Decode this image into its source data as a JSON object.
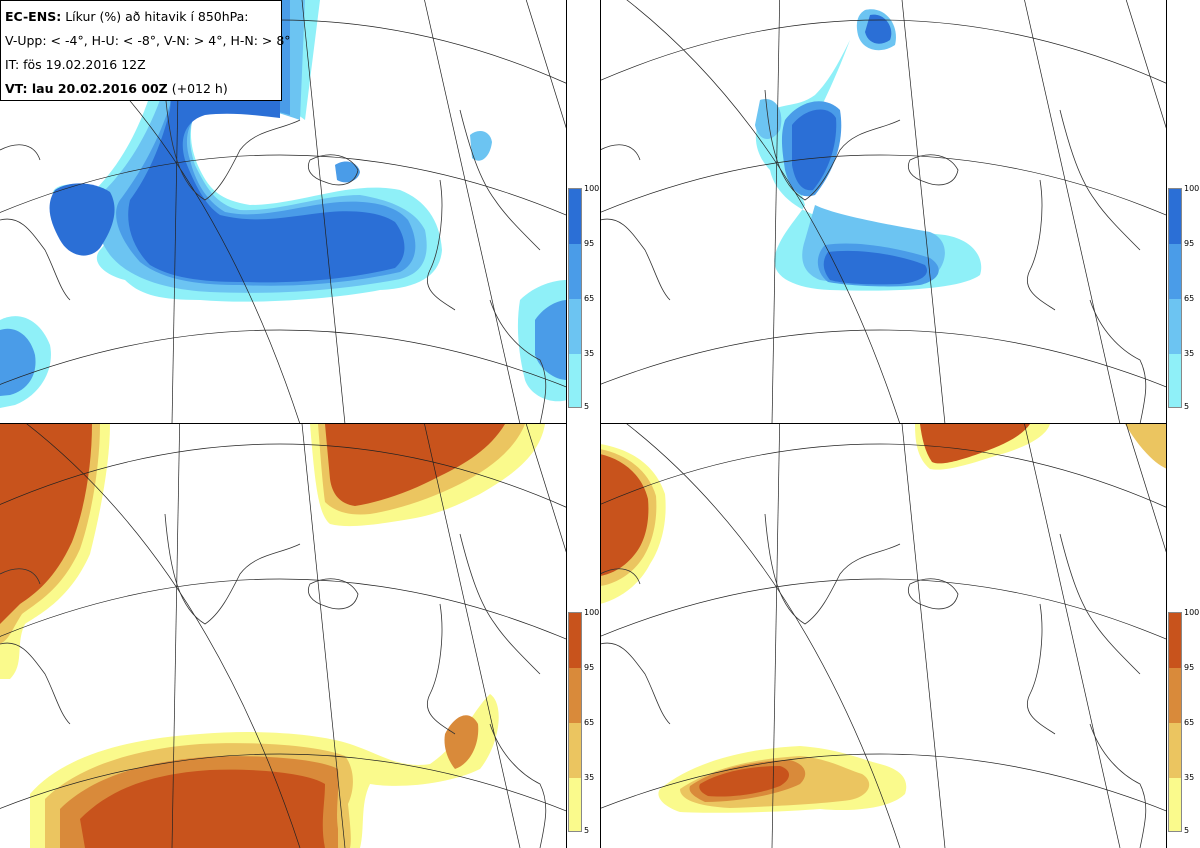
{
  "info": {
    "model": "EC-ENS:",
    "variable": "Líkur (%) að hitavik í 850hPa:",
    "thresholds": "V-Upp: < -4°, H-U: < -8°, V-N: > 4°, H-N: > 8°",
    "issue_time": "IT: fös 19.02.2016 12Z",
    "valid_label": "VT: lau 20.02.2016 00Z",
    "lead_time": "(+012 h)"
  },
  "panels": [
    {
      "id": "V-Upp",
      "description": "probability of 850hPa anomaly < -4°",
      "palette": "cold"
    },
    {
      "id": "H-U",
      "description": "probability of 850hPa anomaly < -8°",
      "palette": "cold"
    },
    {
      "id": "V-N",
      "description": "probability of 850hPa anomaly > 4°",
      "palette": "warm"
    },
    {
      "id": "H-N",
      "description": "probability of 850hPa anomaly > 8°",
      "palette": "warm"
    }
  ],
  "legend": {
    "ticks": [
      "100",
      "95",
      "65",
      "35",
      "5"
    ],
    "cold_colors": [
      "#2b6fd6",
      "#4a9ce8",
      "#6cc4f2",
      "#8ff0f8"
    ],
    "warm_colors": [
      "#c8531c",
      "#d98a3a",
      "#ebc560",
      "#fafa8c"
    ]
  },
  "chart_data": {
    "type": "map",
    "title": "EC-ENS: Líkur (%) að hitavik í 850hPa",
    "colorbar_levels": [
      5,
      35,
      65,
      95,
      100
    ],
    "units": "%"
  }
}
